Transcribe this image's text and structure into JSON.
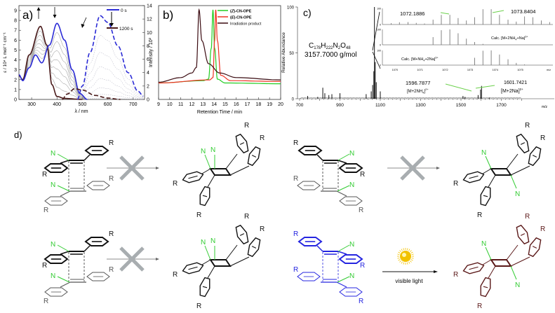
{
  "chart_data": [
    {
      "panel_label": "a)",
      "type": "line",
      "xlabel": "λ / nm",
      "ylabel": "ε / 10⁴ L mol⁻¹ cm⁻¹",
      "ylabel_right": "Intensity / 10²",
      "xlim": [
        250,
        745
      ],
      "ylim": [
        0,
        9
      ],
      "ylim_right": [
        0,
        14
      ],
      "xticks": [
        "300",
        "400",
        "500",
        "600",
        "700"
      ],
      "yticks": [
        "0",
        "1",
        "2",
        "3",
        "4",
        "5",
        "6",
        "7",
        "8",
        "9"
      ],
      "yticks_right": [
        "0",
        "2",
        "4",
        "6",
        "8",
        "10",
        "12",
        "14"
      ],
      "legend": {
        "start": "0 s",
        "end": "1200 s"
      },
      "series": [
        {
          "name": "0 s",
          "kind": "absorption",
          "color": "#2b2bd6",
          "x": [
            250,
            265,
            290,
            315,
            340,
            370,
            400,
            430,
            460,
            490,
            520
          ],
          "y": [
            2.5,
            1.9,
            3.2,
            4.5,
            3.7,
            5.5,
            7.7,
            6.0,
            3.0,
            0.6,
            0
          ]
        },
        {
          "name": "1200 s",
          "kind": "absorption",
          "color": "#4a1a1a",
          "x": [
            250,
            265,
            290,
            335,
            360,
            380,
            400,
            430,
            500
          ],
          "y": [
            2.4,
            2.0,
            4.5,
            7.4,
            5.5,
            1.5,
            0.3,
            0.1,
            0
          ]
        },
        {
          "name": "0 s",
          "kind": "emission",
          "axis": "right",
          "color": "#2b2bd6",
          "x": [
            480,
            500,
            530,
            570,
            600,
            640,
            680,
            720,
            740
          ],
          "y": [
            0,
            2,
            7,
            12.5,
            11.5,
            8,
            4,
            1.2,
            0.5
          ]
        },
        {
          "name": "1200 s",
          "kind": "emission",
          "axis": "right",
          "color": "#4a1a1a",
          "x": [
            420,
            440,
            470,
            500,
            550,
            600,
            650
          ],
          "y": [
            0,
            0.8,
            1.6,
            1.4,
            0.6,
            0.2,
            0
          ]
        }
      ]
    },
    {
      "panel_label": "b)",
      "type": "line",
      "xlabel": "Retention Time / min",
      "xlim": [
        9,
        20
      ],
      "xticks": [
        "9",
        "10",
        "11",
        "12",
        "13",
        "14",
        "15",
        "16",
        "17",
        "18",
        "19",
        "20"
      ],
      "legend_position": "top-right",
      "series": [
        {
          "name_prefix": "(",
          "name_italic": "Z",
          "name_suffix": ")-CN-OPE",
          "color": "#22cc22",
          "x": [
            9,
            13,
            13.5,
            13.75,
            13.9,
            14.05,
            14.3,
            15,
            20
          ],
          "y": [
            0.05,
            0.08,
            0.1,
            0.5,
            1.0,
            0.5,
            0.1,
            0.05,
            0.04
          ]
        },
        {
          "name_prefix": "(",
          "name_italic": "E",
          "name_suffix": ")-CN-OPE",
          "color": "#ee3322",
          "x": [
            9,
            13.6,
            13.9,
            14.05,
            14.15,
            14.3,
            14.6,
            15.5,
            20
          ],
          "y": [
            0.05,
            0.09,
            0.12,
            0.6,
            1.0,
            0.6,
            0.15,
            0.08,
            0.07
          ]
        },
        {
          "name": "Irradiation product",
          "color": "#3a0a10",
          "x": [
            9,
            11,
            12,
            12.4,
            12.65,
            12.9,
            13.5,
            14.5,
            16,
            20
          ],
          "y": [
            0.06,
            0.12,
            0.18,
            0.25,
            1.0,
            0.6,
            0.3,
            0.18,
            0.12,
            0.09
          ]
        }
      ]
    },
    {
      "panel_label": "c)",
      "type": "bar",
      "xlabel": "m/z",
      "ylabel": "Relative Abundance",
      "xlim": [
        700,
        1820
      ],
      "ylim": [
        0,
        100
      ],
      "xticks": [
        "700",
        "900",
        "1100",
        "1300",
        "1500",
        "1700"
      ],
      "yticks": [
        "0",
        "50",
        "100"
      ],
      "peaks": [
        [
          740,
          3
        ],
        [
          790,
          2
        ],
        [
          815,
          12
        ],
        [
          825,
          6
        ],
        [
          845,
          4
        ],
        [
          860,
          5
        ],
        [
          900,
          6
        ],
        [
          1030,
          5
        ],
        [
          1055,
          8
        ],
        [
          1062,
          15
        ],
        [
          1068,
          30
        ],
        [
          1071,
          100
        ],
        [
          1075,
          40
        ],
        [
          1080,
          18
        ],
        [
          1100,
          8
        ],
        [
          1510,
          3
        ],
        [
          1520,
          2
        ],
        [
          1585,
          4
        ],
        [
          1597,
          10
        ],
        [
          1602,
          14
        ],
        [
          1640,
          1
        ]
      ],
      "formula": {
        "c": "C",
        "c_n": "178",
        "h": "H",
        "h_n": "222",
        "n": "N",
        "n_n": "2",
        "o": "O",
        "o_n": "48"
      },
      "molar_mass": "3157.7000 g/mol",
      "annotations": {
        "peak1_mz": "1596.7877",
        "peak1_ion": "[M+2NH",
        "peak1_sub": "4",
        "peak1_end": "]",
        "peak1_charge": "2+",
        "peak2_mz": "1601.7421",
        "peak2_ion": "[M+2Na]",
        "peak2_charge": "2+"
      },
      "inset": {
        "xticks": [
          "1070",
          "1071",
          "1072",
          "1073",
          "1074",
          "1075",
          "m/z"
        ],
        "xlim": [
          1069.5,
          1076.3
        ],
        "yticks": [
          "0",
          "100"
        ],
        "exp_label1": "1072.1886",
        "exp_label2": "1073.8404",
        "calc1_label": "Calc. [M+2NH",
        "calc1_sub": "4",
        "calc1_end": "+Na]",
        "calc1_charge": "3+",
        "calc2_label": "Calc. [M+NH",
        "calc2_sub": "4",
        "calc2_end": "+2Na]",
        "calc2_charge": "3+",
        "experimental": [
          [
            1069.85,
            8
          ],
          [
            1070.18,
            14
          ],
          [
            1070.52,
            15
          ],
          [
            1070.85,
            10
          ],
          [
            1071.18,
            6
          ],
          [
            1071.52,
            30
          ],
          [
            1071.85,
            60
          ],
          [
            1072.19,
            60
          ],
          [
            1072.52,
            40
          ],
          [
            1072.85,
            25
          ],
          [
            1073.18,
            45
          ],
          [
            1073.51,
            95
          ],
          [
            1073.84,
            95
          ],
          [
            1074.17,
            60
          ],
          [
            1074.51,
            30
          ],
          [
            1074.84,
            18
          ],
          [
            1075.17,
            50
          ],
          [
            1075.5,
            45
          ],
          [
            1075.84,
            25
          ],
          [
            1076.17,
            15
          ]
        ],
        "calc1": [
          [
            1071.52,
            50
          ],
          [
            1071.85,
            95
          ],
          [
            1072.19,
            100
          ],
          [
            1072.52,
            75
          ],
          [
            1072.85,
            40
          ],
          [
            1073.18,
            18
          ],
          [
            1073.51,
            6
          ]
        ],
        "calc2": [
          [
            1073.18,
            50
          ],
          [
            1073.51,
            98
          ],
          [
            1073.84,
            100
          ],
          [
            1074.17,
            72
          ],
          [
            1074.51,
            40
          ],
          [
            1074.84,
            15
          ],
          [
            1075.17,
            5
          ]
        ]
      }
    }
  ],
  "scheme": {
    "panel_label": "d)",
    "atom_N": "N",
    "atom_R": "R",
    "reaction_label": "visible light",
    "colors": {
      "black": "#111111",
      "green": "#33cc33",
      "blue": "#2525e0",
      "brown": "#5a1818",
      "gray": "#7a7a7a",
      "cross": "#a8adb0",
      "sun": "#f2c200"
    },
    "reactions": [
      {
        "outcome": "blocked",
        "reactant_color": "black"
      },
      {
        "outcome": "blocked",
        "reactant_color": "black"
      },
      {
        "outcome": "blocked",
        "reactant_color": "black"
      },
      {
        "outcome": "allowed",
        "reactant_color": "blue",
        "product_color": "brown"
      }
    ]
  }
}
